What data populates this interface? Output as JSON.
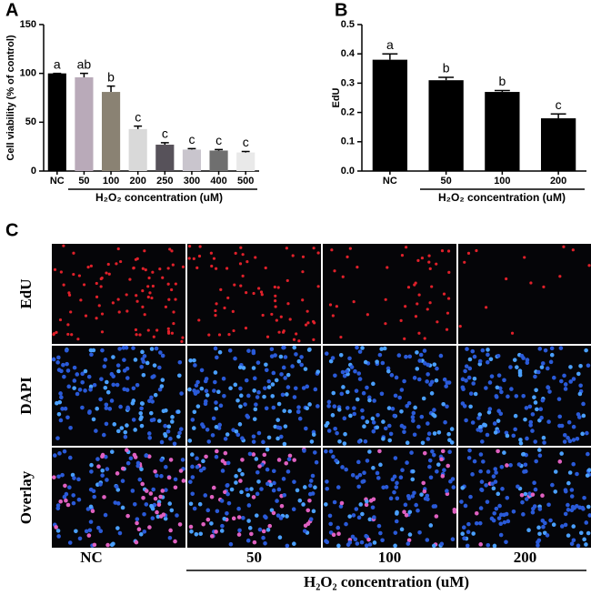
{
  "chart_data": [
    {
      "type": "bar",
      "panel_label": "A",
      "y_label": "Cell viability (% of control)",
      "x_label": "H₂O₂ concentration (uM)",
      "categories": [
        "NC",
        "50",
        "100",
        "200",
        "250",
        "300",
        "400",
        "500"
      ],
      "values": [
        100,
        96,
        81,
        43,
        27,
        22,
        21,
        19
      ],
      "errors": [
        0,
        4,
        6,
        3,
        2,
        1,
        1,
        1
      ],
      "significance_labels": [
        "a",
        "ab",
        "b",
        "c",
        "c",
        "c",
        "c",
        "c"
      ],
      "colors": [
        "#000000",
        "#b9aab9",
        "#8a8273",
        "#d9d9d9",
        "#57525a",
        "#c9c5cd",
        "#6f6f6f",
        "#e9e9e9"
      ],
      "ylim": [
        0,
        150
      ],
      "yticks": [
        0,
        50,
        100,
        150
      ]
    },
    {
      "type": "bar",
      "panel_label": "B",
      "y_label": "EdU",
      "x_label": "H₂O₂ concentration (uM)",
      "categories": [
        "NC",
        "50",
        "100",
        "200"
      ],
      "values": [
        0.38,
        0.31,
        0.27,
        0.18
      ],
      "errors": [
        0.02,
        0.01,
        0.005,
        0.015
      ],
      "significance_labels": [
        "a",
        "b",
        "b",
        "c"
      ],
      "colors": [
        "#000000",
        "#000000",
        "#000000",
        "#000000"
      ],
      "ylim": [
        0,
        0.5
      ],
      "yticks": [
        {
          "value": 0,
          "label": "0.0"
        },
        0.1,
        0.2,
        0.3,
        0.4,
        0.5
      ]
    }
  ],
  "panel_c": {
    "panel_label": "C",
    "rows": [
      "EdU",
      "DAPI",
      "Overlay"
    ],
    "columns": [
      "NC",
      "50",
      "100",
      "200"
    ],
    "x_label": "H₂O₂ concentration (uM)"
  }
}
